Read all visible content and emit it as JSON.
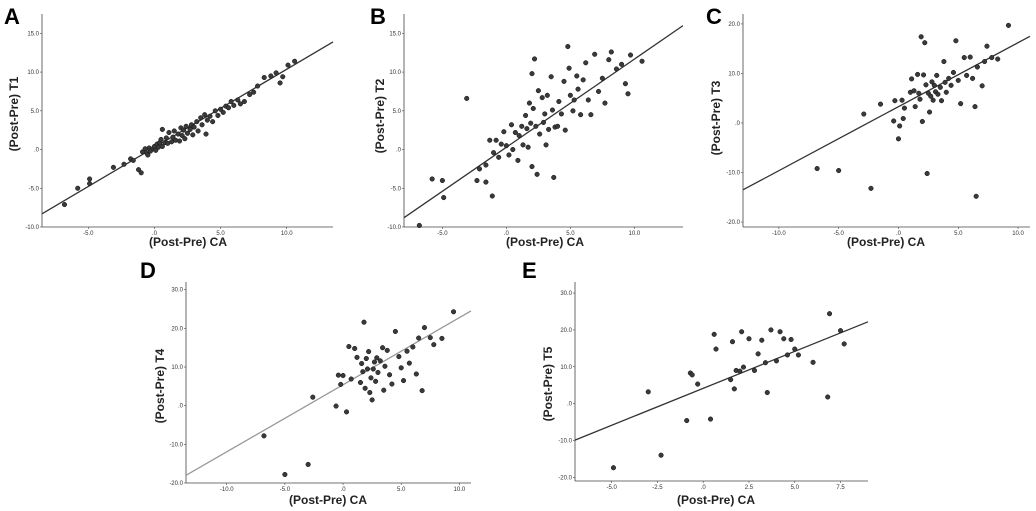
{
  "chart_data": [
    {
      "panel": "A",
      "type": "scatter",
      "xlabel": "(Post-Pre) CA",
      "ylabel": "(Post-Pre) T1",
      "xlim": [
        -8.5,
        13.5
      ],
      "ylim": [
        -10.0,
        17.5
      ],
      "xticks": [
        "-5.0",
        ".0",
        "5.0",
        "10.0"
      ],
      "xtick_values": [
        -5,
        0,
        5,
        10
      ],
      "yticks": [
        "-10.0",
        "-5.0",
        ".0",
        "5.0",
        "10.0",
        "15.0"
      ],
      "ytick_values": [
        -10,
        -5,
        0,
        5,
        10,
        15
      ],
      "line_color": "#333333",
      "fit_line": [
        [
          -8.5,
          -8.3
        ],
        [
          13.5,
          13.9
        ]
      ],
      "points": [
        [
          -6.8,
          -7.1
        ],
        [
          -5.8,
          -5.0
        ],
        [
          -4.9,
          -4.4
        ],
        [
          -4.9,
          -3.8
        ],
        [
          -3.1,
          -2.3
        ],
        [
          -2.3,
          -1.9
        ],
        [
          -1.8,
          -1.2
        ],
        [
          -1.6,
          -1.4
        ],
        [
          -1.2,
          -2.6
        ],
        [
          -1.0,
          -3.0
        ],
        [
          -0.9,
          -0.3
        ],
        [
          -0.7,
          0.1
        ],
        [
          -0.6,
          -0.4
        ],
        [
          -0.5,
          -0.7
        ],
        [
          -0.4,
          0.2
        ],
        [
          -0.3,
          -0.2
        ],
        [
          -0.1,
          0.1
        ],
        [
          0.0,
          0.4
        ],
        [
          0.1,
          -0.1
        ],
        [
          0.2,
          0.7
        ],
        [
          0.3,
          0.3
        ],
        [
          0.4,
          0.9
        ],
        [
          0.5,
          1.3
        ],
        [
          0.6,
          0.4
        ],
        [
          0.6,
          2.6
        ],
        [
          0.8,
          0.9
        ],
        [
          0.9,
          1.5
        ],
        [
          1.0,
          0.8
        ],
        [
          1.1,
          2.2
        ],
        [
          1.3,
          1.0
        ],
        [
          1.4,
          1.6
        ],
        [
          1.5,
          2.4
        ],
        [
          1.6,
          1.2
        ],
        [
          1.8,
          2.0
        ],
        [
          1.9,
          1.1
        ],
        [
          2.0,
          2.8
        ],
        [
          2.1,
          1.8
        ],
        [
          2.2,
          2.5
        ],
        [
          2.3,
          1.4
        ],
        [
          2.4,
          3.0
        ],
        [
          2.5,
          2.1
        ],
        [
          2.7,
          2.6
        ],
        [
          2.8,
          3.2
        ],
        [
          2.9,
          1.9
        ],
        [
          3.0,
          2.9
        ],
        [
          3.2,
          3.6
        ],
        [
          3.3,
          2.4
        ],
        [
          3.5,
          4.1
        ],
        [
          3.6,
          3.2
        ],
        [
          3.8,
          4.5
        ],
        [
          3.9,
          2.0
        ],
        [
          4.0,
          3.8
        ],
        [
          4.2,
          4.3
        ],
        [
          4.4,
          3.6
        ],
        [
          4.6,
          5.0
        ],
        [
          4.8,
          4.4
        ],
        [
          5.0,
          5.2
        ],
        [
          5.2,
          4.8
        ],
        [
          5.4,
          5.6
        ],
        [
          5.6,
          5.4
        ],
        [
          5.8,
          6.2
        ],
        [
          6.0,
          5.7
        ],
        [
          6.3,
          6.4
        ],
        [
          6.5,
          5.9
        ],
        [
          6.8,
          6.2
        ],
        [
          7.2,
          7.1
        ],
        [
          7.5,
          7.4
        ],
        [
          7.8,
          8.2
        ],
        [
          8.3,
          9.3
        ],
        [
          8.8,
          9.5
        ],
        [
          9.2,
          9.9
        ],
        [
          9.5,
          8.6
        ],
        [
          9.7,
          9.4
        ],
        [
          10.1,
          10.9
        ],
        [
          10.6,
          11.4
        ]
      ]
    },
    {
      "panel": "B",
      "type": "scatter",
      "xlabel": "(Post-Pre) CA",
      "ylabel": "(Post-Pre) T2",
      "xlim": [
        -8.0,
        13.8
      ],
      "ylim": [
        -10.0,
        17.5
      ],
      "xticks": [
        "-5.0",
        ".0",
        "5.0",
        "10.0"
      ],
      "xtick_values": [
        -5,
        0,
        5,
        10
      ],
      "yticks": [
        "-10.0",
        "-5.0",
        ".0",
        "5.0",
        "10.0",
        "15.0"
      ],
      "ytick_values": [
        -10,
        -5,
        0,
        5,
        10,
        15
      ],
      "line_color": "#333333",
      "fit_line": [
        [
          -8.0,
          -8.8
        ],
        [
          13.8,
          16.0
        ]
      ],
      "points": [
        [
          -6.8,
          -9.8
        ],
        [
          -5.8,
          -3.8
        ],
        [
          -5.0,
          -4.0
        ],
        [
          -4.9,
          -6.2
        ],
        [
          -3.1,
          6.6
        ],
        [
          -2.3,
          -4.0
        ],
        [
          -2.1,
          -2.5
        ],
        [
          -1.6,
          -2.0
        ],
        [
          -1.6,
          -4.2
        ],
        [
          -1.3,
          1.2
        ],
        [
          -1.1,
          -6.0
        ],
        [
          -1.0,
          -0.4
        ],
        [
          -0.8,
          1.2
        ],
        [
          -0.6,
          -1.0
        ],
        [
          -0.4,
          0.7
        ],
        [
          -0.2,
          2.3
        ],
        [
          0.0,
          0.5
        ],
        [
          0.2,
          -0.7
        ],
        [
          0.4,
          3.2
        ],
        [
          0.5,
          0.0
        ],
        [
          0.7,
          2.2
        ],
        [
          0.9,
          -1.4
        ],
        [
          1.0,
          1.8
        ],
        [
          1.2,
          3.0
        ],
        [
          1.3,
          0.6
        ],
        [
          1.5,
          4.4
        ],
        [
          1.6,
          2.7
        ],
        [
          1.7,
          0.3
        ],
        [
          1.8,
          6.0
        ],
        [
          1.9,
          3.4
        ],
        [
          2.0,
          9.8
        ],
        [
          2.0,
          -2.2
        ],
        [
          2.1,
          5.3
        ],
        [
          2.2,
          11.7
        ],
        [
          2.3,
          3.0
        ],
        [
          2.4,
          -3.2
        ],
        [
          2.5,
          7.6
        ],
        [
          2.6,
          2.0
        ],
        [
          2.8,
          6.7
        ],
        [
          2.9,
          3.5
        ],
        [
          3.0,
          4.6
        ],
        [
          3.1,
          0.6
        ],
        [
          3.2,
          7.0
        ],
        [
          3.3,
          2.6
        ],
        [
          3.5,
          9.4
        ],
        [
          3.6,
          5.1
        ],
        [
          3.7,
          -3.6
        ],
        [
          3.8,
          2.9
        ],
        [
          4.0,
          3.0
        ],
        [
          4.1,
          6.2
        ],
        [
          4.3,
          4.6
        ],
        [
          4.5,
          8.8
        ],
        [
          4.6,
          2.5
        ],
        [
          4.8,
          13.3
        ],
        [
          4.9,
          10.5
        ],
        [
          5.0,
          7.0
        ],
        [
          5.2,
          5.0
        ],
        [
          5.3,
          6.4
        ],
        [
          5.5,
          9.5
        ],
        [
          5.6,
          7.8
        ],
        [
          5.8,
          4.5
        ],
        [
          6.0,
          9.0
        ],
        [
          6.2,
          11.2
        ],
        [
          6.4,
          6.4
        ],
        [
          6.6,
          4.5
        ],
        [
          6.9,
          12.3
        ],
        [
          7.2,
          7.5
        ],
        [
          7.5,
          9.2
        ],
        [
          7.7,
          6.0
        ],
        [
          8.0,
          11.6
        ],
        [
          8.2,
          12.6
        ],
        [
          8.6,
          10.4
        ],
        [
          9.0,
          11.0
        ],
        [
          9.3,
          8.5
        ],
        [
          9.5,
          7.2
        ],
        [
          9.7,
          12.2
        ],
        [
          10.6,
          11.4
        ]
      ]
    },
    {
      "panel": "C",
      "type": "scatter",
      "xlabel": "(Post-Pre) CA",
      "ylabel": "(Post-Pre) T3",
      "xlim": [
        -13.0,
        11.0
      ],
      "ylim": [
        -21.0,
        22.0
      ],
      "xticks": [
        "-10.0",
        "-5.0",
        ".0",
        "5.0",
        "10.0"
      ],
      "xtick_values": [
        -10,
        -5,
        0,
        5,
        10
      ],
      "yticks": [
        "-20.0",
        "-10.0",
        ".0",
        "10.0",
        "20.0"
      ],
      "ytick_values": [
        -20,
        -10,
        0,
        10,
        20
      ],
      "line_color": "#333333",
      "fit_line": [
        [
          -13.0,
          -13.5
        ],
        [
          11.0,
          17.5
        ]
      ],
      "points": [
        [
          -6.8,
          -9.2
        ],
        [
          -5.0,
          -9.6
        ],
        [
          -2.9,
          1.8
        ],
        [
          -2.3,
          -13.2
        ],
        [
          -1.5,
          3.8
        ],
        [
          -0.4,
          0.4
        ],
        [
          -0.3,
          4.5
        ],
        [
          0.0,
          -3.2
        ],
        [
          0.1,
          -0.6
        ],
        [
          0.3,
          4.6
        ],
        [
          0.4,
          0.9
        ],
        [
          0.5,
          3.0
        ],
        [
          1.0,
          6.2
        ],
        [
          1.1,
          8.9
        ],
        [
          1.3,
          6.5
        ],
        [
          1.4,
          3.3
        ],
        [
          1.6,
          9.8
        ],
        [
          1.7,
          6.0
        ],
        [
          1.8,
          4.8
        ],
        [
          1.9,
          17.4
        ],
        [
          2.0,
          0.3
        ],
        [
          2.1,
          9.7
        ],
        [
          2.2,
          16.2
        ],
        [
          2.3,
          7.7
        ],
        [
          2.4,
          -10.2
        ],
        [
          2.5,
          6.0
        ],
        [
          2.6,
          2.2
        ],
        [
          2.7,
          5.4
        ],
        [
          2.8,
          8.3
        ],
        [
          2.9,
          4.6
        ],
        [
          3.0,
          7.6
        ],
        [
          3.1,
          6.3
        ],
        [
          3.2,
          9.6
        ],
        [
          3.3,
          5.8
        ],
        [
          3.5,
          7.2
        ],
        [
          3.6,
          4.5
        ],
        [
          3.8,
          12.4
        ],
        [
          3.9,
          8.2
        ],
        [
          4.0,
          6.2
        ],
        [
          4.2,
          9.0
        ],
        [
          4.4,
          7.6
        ],
        [
          4.6,
          10.2
        ],
        [
          4.8,
          16.6
        ],
        [
          5.0,
          8.6
        ],
        [
          5.2,
          3.9
        ],
        [
          5.5,
          13.2
        ],
        [
          5.7,
          9.6
        ],
        [
          6.0,
          13.3
        ],
        [
          6.2,
          9.0
        ],
        [
          6.4,
          3.3
        ],
        [
          6.5,
          -14.8
        ],
        [
          6.6,
          11.3
        ],
        [
          7.0,
          7.5
        ],
        [
          7.2,
          12.4
        ],
        [
          7.4,
          15.5
        ],
        [
          7.8,
          13.2
        ],
        [
          8.3,
          12.9
        ],
        [
          9.2,
          19.7
        ]
      ]
    },
    {
      "panel": "D",
      "type": "scatter",
      "xlabel": "(Post-Pre) CA",
      "ylabel": "(Post-Pre) T4",
      "xlim": [
        -13.5,
        11.0
      ],
      "ylim": [
        -20.0,
        32.0
      ],
      "xticks": [
        "-10.0",
        "-5.0",
        ".0",
        "5.0",
        "10.0"
      ],
      "xtick_values": [
        -10,
        -5,
        0,
        5,
        10
      ],
      "yticks": [
        "-20.0",
        "-10.0",
        ".0",
        "10.0",
        "20.0",
        "30.0"
      ],
      "ytick_values": [
        -20,
        -10,
        0,
        10,
        20,
        30
      ],
      "line_color": "#999999",
      "fit_line": [
        [
          -13.5,
          -18.0
        ],
        [
          11.0,
          24.5
        ]
      ],
      "points": [
        [
          -6.8,
          -7.8
        ],
        [
          -5.0,
          -17.8
        ],
        [
          -3.0,
          -15.2
        ],
        [
          -2.6,
          2.2
        ],
        [
          -0.6,
          -0.1
        ],
        [
          -0.4,
          7.9
        ],
        [
          -0.2,
          5.5
        ],
        [
          0.0,
          7.8
        ],
        [
          0.3,
          -1.6
        ],
        [
          0.5,
          15.3
        ],
        [
          0.7,
          6.9
        ],
        [
          1.0,
          14.8
        ],
        [
          1.2,
          12.5
        ],
        [
          1.5,
          6.0
        ],
        [
          1.6,
          10.9
        ],
        [
          1.7,
          8.8
        ],
        [
          1.8,
          21.6
        ],
        [
          1.9,
          4.5
        ],
        [
          2.0,
          12.2
        ],
        [
          2.1,
          9.5
        ],
        [
          2.2,
          14.0
        ],
        [
          2.3,
          3.4
        ],
        [
          2.4,
          7.2
        ],
        [
          2.5,
          1.5
        ],
        [
          2.6,
          9.5
        ],
        [
          2.7,
          11.3
        ],
        [
          2.8,
          6.3
        ],
        [
          2.9,
          12.4
        ],
        [
          3.0,
          8.6
        ],
        [
          3.2,
          11.6
        ],
        [
          3.4,
          15.0
        ],
        [
          3.5,
          4.0
        ],
        [
          3.6,
          10.2
        ],
        [
          3.8,
          14.3
        ],
        [
          4.0,
          8.0
        ],
        [
          4.2,
          5.6
        ],
        [
          4.5,
          19.2
        ],
        [
          4.8,
          12.7
        ],
        [
          5.0,
          9.8
        ],
        [
          5.2,
          6.5
        ],
        [
          5.5,
          14.1
        ],
        [
          5.7,
          11.0
        ],
        [
          6.0,
          15.2
        ],
        [
          6.3,
          8.2
        ],
        [
          6.5,
          17.5
        ],
        [
          6.8,
          3.9
        ],
        [
          7.0,
          20.2
        ],
        [
          7.5,
          17.6
        ],
        [
          7.8,
          15.8
        ],
        [
          8.5,
          17.4
        ],
        [
          9.5,
          24.3
        ]
      ]
    },
    {
      "panel": "E",
      "type": "scatter",
      "xlabel": "(Post-Pre) CA",
      "ylabel": "(Post-Pre) T5",
      "xlim": [
        -7.0,
        9.0
      ],
      "ylim": [
        -21.0,
        33.0
      ],
      "xticks": [
        "-5.0",
        "-2.5",
        ".0",
        "2.5",
        "5.0",
        "7.5"
      ],
      "xtick_values": [
        -5,
        -2.5,
        0,
        2.5,
        5,
        7.5
      ],
      "yticks": [
        "-20.0",
        "-10.0",
        ".0",
        "10.0",
        "20.0",
        "30.0"
      ],
      "ytick_values": [
        -20,
        -10,
        0,
        10,
        20,
        30
      ],
      "line_color": "#333333",
      "fit_line": [
        [
          -7.0,
          -9.9
        ],
        [
          9.0,
          22.2
        ]
      ],
      "points": [
        [
          -4.9,
          -17.4
        ],
        [
          -3.0,
          3.2
        ],
        [
          -2.3,
          -14.0
        ],
        [
          -0.9,
          -4.6
        ],
        [
          -0.7,
          8.3
        ],
        [
          -0.6,
          7.8
        ],
        [
          -0.3,
          5.3
        ],
        [
          0.4,
          -4.2
        ],
        [
          0.6,
          18.8
        ],
        [
          0.7,
          14.8
        ],
        [
          1.5,
          6.5
        ],
        [
          1.6,
          16.8
        ],
        [
          1.7,
          4.0
        ],
        [
          1.8,
          9.0
        ],
        [
          2.0,
          8.8
        ],
        [
          2.1,
          19.5
        ],
        [
          2.2,
          9.9
        ],
        [
          2.5,
          17.6
        ],
        [
          2.8,
          9.0
        ],
        [
          3.0,
          13.5
        ],
        [
          3.2,
          17.2
        ],
        [
          3.4,
          11.1
        ],
        [
          3.5,
          3.0
        ],
        [
          3.7,
          20.0
        ],
        [
          4.0,
          11.6
        ],
        [
          4.2,
          19.5
        ],
        [
          4.4,
          17.6
        ],
        [
          4.6,
          13.2
        ],
        [
          4.8,
          17.4
        ],
        [
          5.0,
          14.8
        ],
        [
          5.2,
          13.2
        ],
        [
          6.0,
          11.2
        ],
        [
          6.8,
          1.8
        ],
        [
          6.9,
          24.4
        ],
        [
          7.5,
          19.8
        ],
        [
          7.7,
          16.2
        ]
      ]
    }
  ]
}
